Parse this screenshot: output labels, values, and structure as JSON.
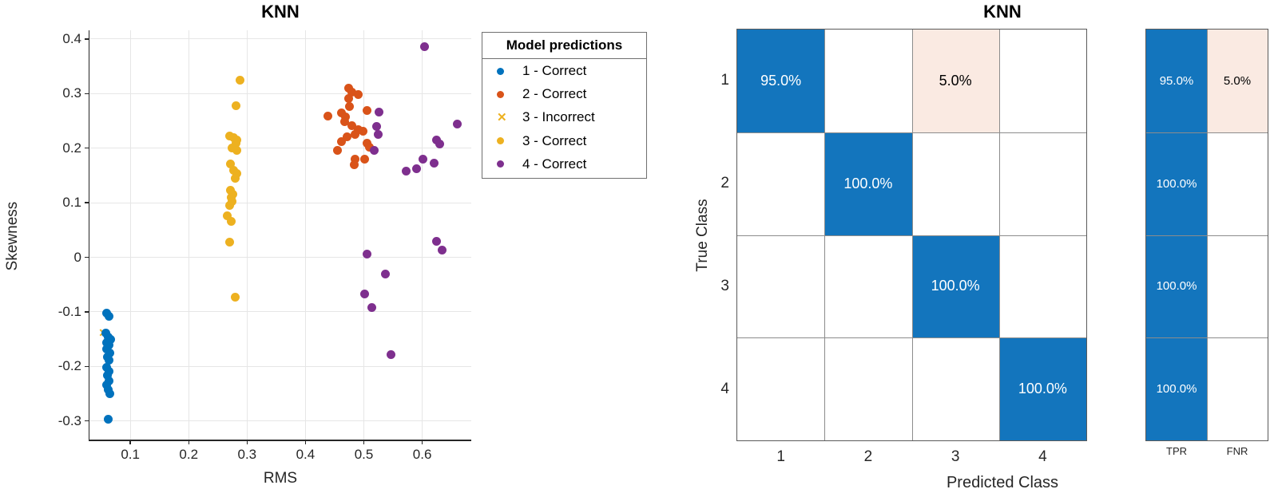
{
  "colors": {
    "class1_blue": "#0072BD",
    "class2_orange": "#D95319",
    "class3_yellow": "#EDB120",
    "class4_purple": "#7E2F8E",
    "conf_diagonal_blue": "#1375BD",
    "conf_offdiagonal_pink": "#FAEAE2",
    "grid_gray": "#e6e6e6",
    "text_dark": "#262626"
  },
  "chart_data": [
    {
      "type": "scatter",
      "title": "KNN",
      "xlabel": "RMS",
      "ylabel": "Skewness",
      "xlim": [
        0.03,
        0.684
      ],
      "ylim": [
        -0.334,
        0.416
      ],
      "grid": "on",
      "xticks": [
        "0.1",
        "0.2",
        "0.3",
        "0.4",
        "0.5",
        "0.6"
      ],
      "yticks": [
        "0.4",
        "0.3",
        "0.2",
        "0.1",
        "0",
        "-0.1",
        "-0.2",
        "-0.3"
      ],
      "legend": {
        "title": "Model predictions",
        "position": "right-outside",
        "entries": [
          {
            "label": "1 - Correct",
            "marker": "dot",
            "color": "#0072BD"
          },
          {
            "label": "2 - Correct",
            "marker": "dot",
            "color": "#D95319"
          },
          {
            "label": "3 - Incorrect",
            "marker": "x",
            "color": "#EDB120"
          },
          {
            "label": "3 - Correct",
            "marker": "dot",
            "color": "#EDB120"
          },
          {
            "label": "4 - Correct",
            "marker": "dot",
            "color": "#7E2F8E"
          }
        ]
      },
      "series": [
        {
          "name": "1 - Correct",
          "marker": "dot",
          "color": "#0072BD",
          "points": [
            [
              0.06,
              -0.102
            ],
            [
              0.063,
              -0.108
            ],
            [
              0.058,
              -0.139
            ],
            [
              0.062,
              -0.146
            ],
            [
              0.066,
              -0.151
            ],
            [
              0.059,
              -0.157
            ],
            [
              0.064,
              -0.161
            ],
            [
              0.06,
              -0.168
            ],
            [
              0.065,
              -0.176
            ],
            [
              0.061,
              -0.183
            ],
            [
              0.064,
              -0.188
            ],
            [
              0.059,
              -0.202
            ],
            [
              0.063,
              -0.209
            ],
            [
              0.061,
              -0.217
            ],
            [
              0.064,
              -0.227
            ],
            [
              0.059,
              -0.234
            ],
            [
              0.062,
              -0.243
            ],
            [
              0.065,
              -0.25
            ],
            [
              0.062,
              -0.297
            ]
          ]
        },
        {
          "name": "2 - Correct",
          "marker": "dot",
          "color": "#D95319",
          "points": [
            [
              0.474,
              0.31
            ],
            [
              0.48,
              0.303
            ],
            [
              0.49,
              0.299
            ],
            [
              0.474,
              0.291
            ],
            [
              0.476,
              0.277
            ],
            [
              0.505,
              0.269
            ],
            [
              0.462,
              0.264
            ],
            [
              0.439,
              0.259
            ],
            [
              0.468,
              0.258
            ],
            [
              0.467,
              0.249
            ],
            [
              0.48,
              0.241
            ],
            [
              0.491,
              0.234
            ],
            [
              0.498,
              0.231
            ],
            [
              0.485,
              0.225
            ],
            [
              0.471,
              0.221
            ],
            [
              0.462,
              0.212
            ],
            [
              0.505,
              0.209
            ],
            [
              0.509,
              0.202
            ],
            [
              0.455,
              0.196
            ],
            [
              0.485,
              0.18
            ],
            [
              0.502,
              0.18
            ],
            [
              0.483,
              0.17
            ]
          ]
        },
        {
          "name": "3 - Incorrect",
          "marker": "x",
          "color": "#EDB120",
          "points": [
            [
              0.055,
              -0.138
            ]
          ]
        },
        {
          "name": "3 - Correct",
          "marker": "dot",
          "color": "#EDB120",
          "points": [
            [
              0.288,
              0.324
            ],
            [
              0.281,
              0.278
            ],
            [
              0.27,
              0.223
            ],
            [
              0.277,
              0.22
            ],
            [
              0.283,
              0.215
            ],
            [
              0.281,
              0.209
            ],
            [
              0.274,
              0.201
            ],
            [
              0.283,
              0.196
            ],
            [
              0.272,
              0.171
            ],
            [
              0.277,
              0.16
            ],
            [
              0.283,
              0.154
            ],
            [
              0.28,
              0.145
            ],
            [
              0.271,
              0.123
            ],
            [
              0.275,
              0.116
            ],
            [
              0.273,
              0.11
            ],
            [
              0.274,
              0.103
            ],
            [
              0.27,
              0.095
            ],
            [
              0.266,
              0.076
            ],
            [
              0.273,
              0.066
            ],
            [
              0.27,
              0.028
            ],
            [
              0.28,
              -0.073
            ]
          ]
        },
        {
          "name": "4 - Correct",
          "marker": "dot",
          "color": "#7E2F8E",
          "points": [
            [
              0.604,
              0.386
            ],
            [
              0.526,
              0.266
            ],
            [
              0.66,
              0.244
            ],
            [
              0.522,
              0.24
            ],
            [
              0.524,
              0.225
            ],
            [
              0.625,
              0.215
            ],
            [
              0.63,
              0.208
            ],
            [
              0.518,
              0.196
            ],
            [
              0.601,
              0.18
            ],
            [
              0.621,
              0.173
            ],
            [
              0.59,
              0.162
            ],
            [
              0.572,
              0.158
            ],
            [
              0.625,
              0.029
            ],
            [
              0.634,
              0.013
            ],
            [
              0.505,
              0.006
            ],
            [
              0.537,
              -0.031
            ],
            [
              0.502,
              -0.067
            ],
            [
              0.513,
              -0.092
            ],
            [
              0.547,
              -0.179
            ]
          ]
        }
      ]
    },
    {
      "type": "heatmap",
      "subtype": "confusion-matrix",
      "title": "KNN",
      "xlabel": "Predicted Class",
      "ylabel": "True Class",
      "row_labels": [
        "1",
        "2",
        "3",
        "4"
      ],
      "col_labels": [
        "1",
        "2",
        "3",
        "4"
      ],
      "rows": [
        [
          {
            "v": "95.0%",
            "t": "diag"
          },
          {
            "v": "",
            "t": "blank"
          },
          {
            "v": "5.0%",
            "t": "off"
          },
          {
            "v": "",
            "t": "blank"
          }
        ],
        [
          {
            "v": "",
            "t": "blank"
          },
          {
            "v": "100.0%",
            "t": "diag"
          },
          {
            "v": "",
            "t": "blank"
          },
          {
            "v": "",
            "t": "blank"
          }
        ],
        [
          {
            "v": "",
            "t": "blank"
          },
          {
            "v": "",
            "t": "blank"
          },
          {
            "v": "100.0%",
            "t": "diag"
          },
          {
            "v": "",
            "t": "blank"
          }
        ],
        [
          {
            "v": "",
            "t": "blank"
          },
          {
            "v": "",
            "t": "blank"
          },
          {
            "v": "",
            "t": "blank"
          },
          {
            "v": "100.0%",
            "t": "diag"
          }
        ]
      ],
      "summary": {
        "labels": [
          "TPR",
          "FNR"
        ],
        "rows": [
          [
            {
              "v": "95.0%",
              "t": "diag"
            },
            {
              "v": "5.0%",
              "t": "off"
            }
          ],
          [
            {
              "v": "100.0%",
              "t": "diag"
            },
            {
              "v": "",
              "t": "blank"
            }
          ],
          [
            {
              "v": "100.0%",
              "t": "diag"
            },
            {
              "v": "",
              "t": "blank"
            }
          ],
          [
            {
              "v": "100.0%",
              "t": "diag"
            },
            {
              "v": "",
              "t": "blank"
            }
          ]
        ]
      }
    }
  ]
}
